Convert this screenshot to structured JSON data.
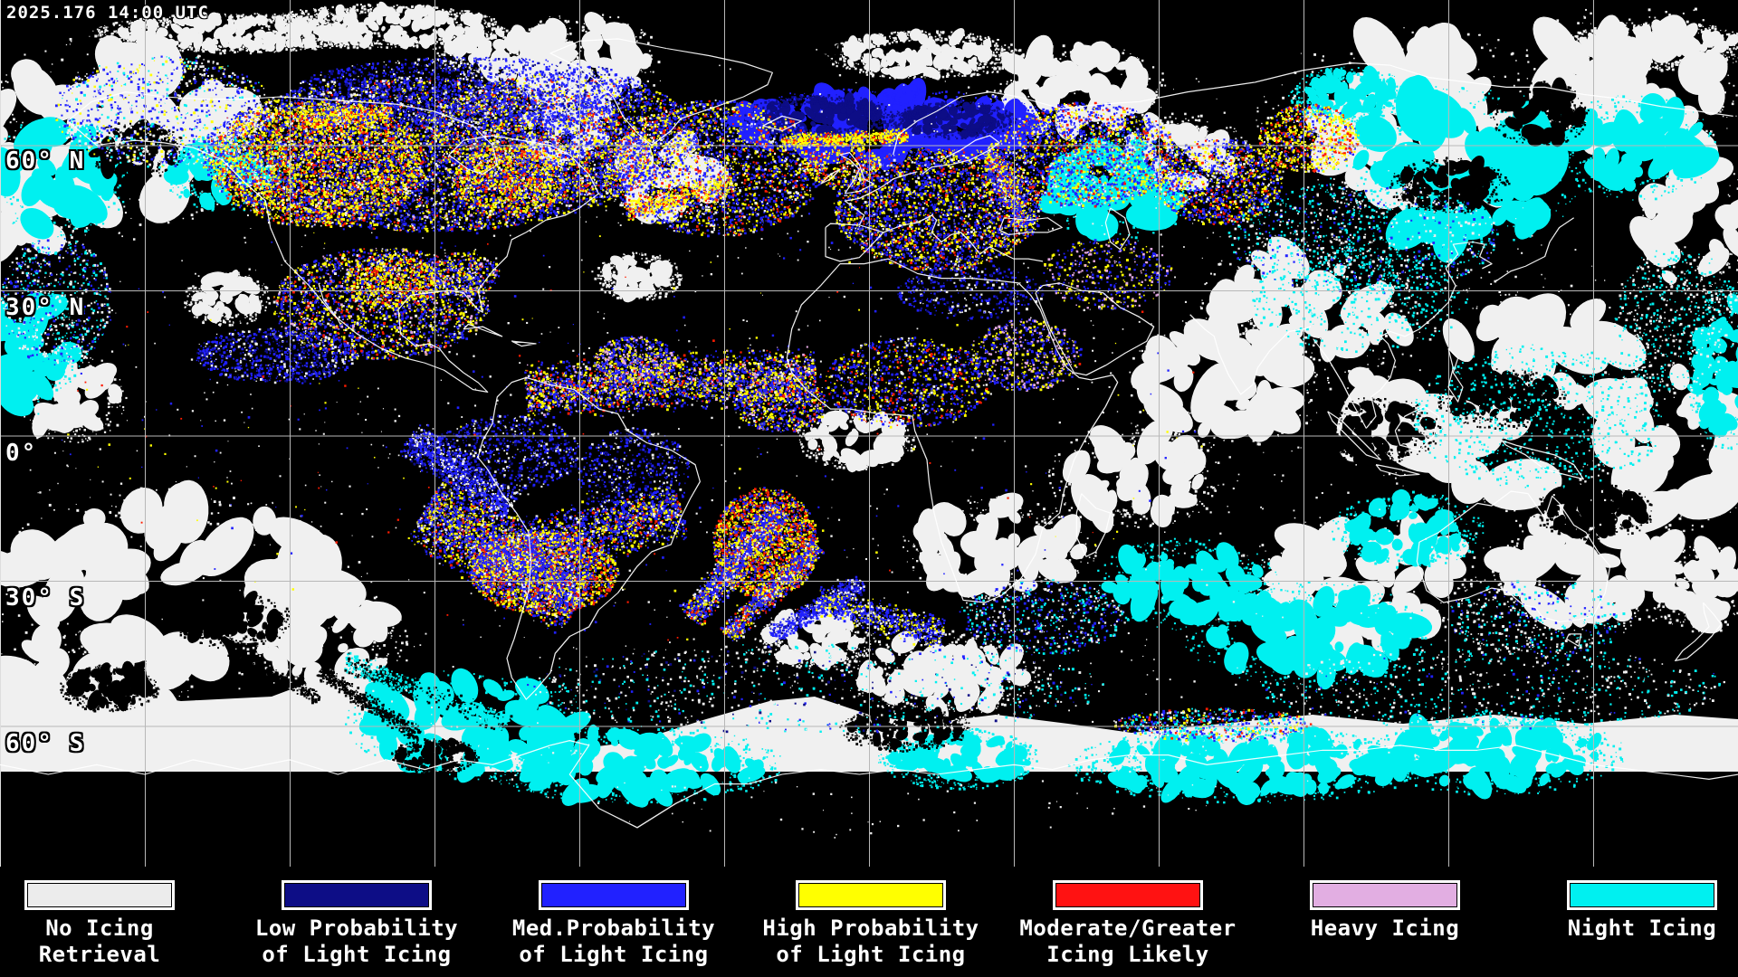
{
  "timestamp": "2025.176 14:00 UTC",
  "map": {
    "latitude_labels": [
      {
        "text": "60° N"
      },
      {
        "text": "30° N"
      },
      {
        "text": "0°"
      },
      {
        "text": "30° S"
      },
      {
        "text": "60° S"
      }
    ]
  },
  "legend": {
    "items": [
      {
        "name": "no-icing-retrieval",
        "color": "#ececec",
        "line1": "No Icing",
        "line2": "Retrieval"
      },
      {
        "name": "low-probability",
        "color": "#0d0d86",
        "line1": "Low Probability",
        "line2": "of Light Icing"
      },
      {
        "name": "med-probability",
        "color": "#2121ff",
        "line1": "Med.Probability",
        "line2": "of Light Icing"
      },
      {
        "name": "high-probability",
        "color": "#ffff00",
        "line1": "High Probability",
        "line2": "of Light Icing"
      },
      {
        "name": "moderate-greater",
        "color": "#ff1212",
        "line1": "Moderate/Greater",
        "line2": "Icing Likely"
      },
      {
        "name": "heavy-icing",
        "color": "#e2aee2",
        "line1": "Heavy Icing",
        "line2": ""
      },
      {
        "name": "night-icing",
        "color": "#00f0f0",
        "line1": "Night Icing",
        "line2": ""
      }
    ]
  },
  "palette": {
    "background": "#000000",
    "white_cloud": "#f0f0f0",
    "night_cyan": "#00f0f0",
    "blue_med": "#2121ff",
    "navy_low": "#0d0d86",
    "yellow_high": "#ffff00",
    "red_moderate": "#ff1c00",
    "plum_heavy": "#e2a8e2",
    "grid_line": "#b8b8b8",
    "coastline": "#ffffff",
    "label_color": "#ffffff"
  }
}
